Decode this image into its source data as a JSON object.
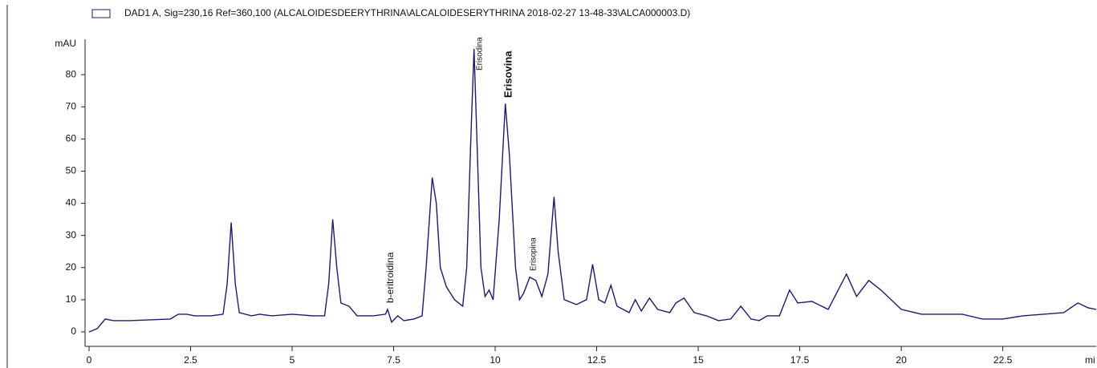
{
  "chart_data": {
    "type": "line",
    "x_label": "mi",
    "y_label": "mAU",
    "xlim": [
      0,
      24.8
    ],
    "ylim": [
      -4.5,
      91
    ],
    "xticks": [
      0,
      2.5,
      5,
      7.5,
      10,
      12.5,
      15,
      17.5,
      20,
      22.5
    ],
    "yticks": [
      0,
      10,
      20,
      30,
      40,
      50,
      60,
      70,
      80
    ],
    "legend": "top-left",
    "annotations": [
      "b-eritroidina",
      "Erisodina",
      "Erisovina",
      "Erisopina"
    ],
    "x": [
      0,
      0.2,
      0.4,
      0.6,
      1.0,
      2.0,
      2.2,
      2.4,
      2.6,
      3.0,
      3.3,
      3.4,
      3.5,
      3.6,
      3.7,
      4.0,
      4.2,
      4.5,
      5.0,
      5.5,
      5.8,
      5.9,
      6.0,
      6.1,
      6.2,
      6.4,
      6.6,
      7.0,
      7.3,
      7.35,
      7.45,
      7.6,
      7.75,
      8.0,
      8.2,
      8.3,
      8.45,
      8.55,
      8.65,
      8.8,
      9.0,
      9.2,
      9.3,
      9.4,
      9.48,
      9.55,
      9.65,
      9.75,
      9.85,
      9.95,
      10.1,
      10.25,
      10.35,
      10.5,
      10.6,
      10.7,
      10.85,
      11.0,
      11.15,
      11.3,
      11.45,
      11.55,
      11.7,
      12.0,
      12.25,
      12.4,
      12.55,
      12.7,
      12.85,
      13.0,
      13.3,
      13.45,
      13.6,
      13.8,
      14.0,
      14.3,
      14.45,
      14.65,
      14.9,
      15.2,
      15.5,
      15.8,
      16.05,
      16.3,
      16.5,
      16.7,
      17.0,
      17.25,
      17.45,
      17.8,
      18.2,
      18.65,
      18.9,
      19.2,
      19.5,
      20.0,
      20.5,
      21.5,
      22.0,
      22.5,
      23.0,
      23.5,
      24.0,
      24.35,
      24.6,
      24.8
    ],
    "series": [
      {
        "name": "DAD1 A, Sig=230,16 Ref=360,100 (ALCALOIDESDEERYTHRINA\\ALCALOIDESERYTHRINA 2018-02-27 13-48-33\\ALCA000003.D)",
        "color": "#1c1c6b",
        "values": [
          0,
          1,
          4,
          3.5,
          3.5,
          4,
          5.5,
          5.5,
          5,
          5,
          5.5,
          15,
          34,
          15,
          6,
          5,
          5.5,
          5,
          5.5,
          5,
          5,
          15,
          35,
          20,
          9,
          8,
          5,
          5,
          5.5,
          7,
          3,
          5,
          3.5,
          4,
          5,
          20,
          48,
          40,
          20,
          14,
          10,
          8,
          20,
          60,
          88,
          60,
          20,
          11,
          13,
          10,
          35,
          71,
          55,
          20,
          10,
          12,
          17,
          16,
          11,
          18,
          42,
          25,
          10,
          8.5,
          10,
          21,
          10,
          9,
          14.5,
          8,
          6,
          10,
          6.5,
          10.5,
          7,
          6,
          9,
          10.5,
          6,
          5,
          3.5,
          4,
          8,
          4,
          3.5,
          5,
          5,
          13,
          9,
          9.5,
          7,
          18,
          11,
          16,
          13,
          7,
          5.5,
          5.5,
          4,
          4,
          5,
          5.5,
          6,
          9,
          7.5,
          7
        ]
      }
    ]
  }
}
